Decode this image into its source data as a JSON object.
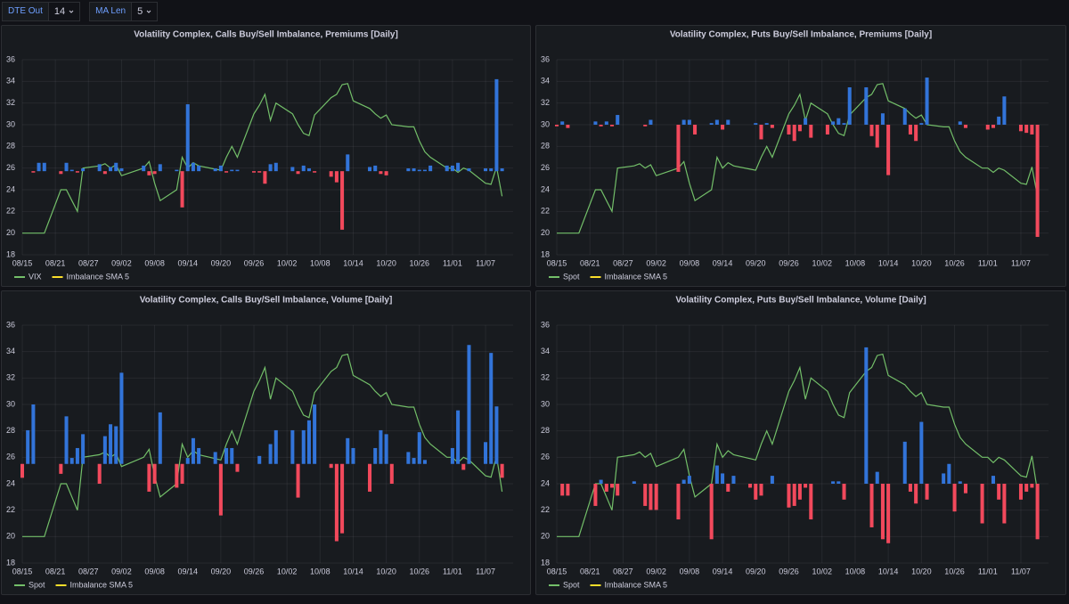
{
  "toolbar": {
    "variables": [
      {
        "label": "DTE Out",
        "value": "14"
      },
      {
        "label": "MA Len",
        "value": "5"
      }
    ]
  },
  "chart_data": [
    {
      "type": "combo",
      "title": "Volatility Complex, Calls Buy/Sell Imbalance, Premiums [Daily]",
      "x": [
        "08/15",
        "08/16",
        "08/17",
        "08/18",
        "08/19",
        "08/22",
        "08/23",
        "08/24",
        "08/25",
        "08/26",
        "08/29",
        "08/30",
        "08/31",
        "09/01",
        "09/02",
        "09/06",
        "09/07",
        "09/08",
        "09/09",
        "09/12",
        "09/13",
        "09/14",
        "09/15",
        "09/16",
        "09/19",
        "09/20",
        "09/21",
        "09/22",
        "09/23",
        "09/26",
        "09/27",
        "09/28",
        "09/29",
        "09/30",
        "10/03",
        "10/04",
        "10/05",
        "10/06",
        "10/07",
        "10/10",
        "10/11",
        "10/12",
        "10/13",
        "10/14",
        "10/17",
        "10/18",
        "10/19",
        "10/20",
        "10/21",
        "10/24",
        "10/25",
        "10/26",
        "10/27",
        "10/28",
        "10/31",
        "11/01",
        "11/02",
        "11/03",
        "11/04",
        "11/07",
        "11/08",
        "11/09",
        "11/10"
      ],
      "xlim": [
        "08/15",
        "11/12"
      ],
      "xticks": [
        "08/15",
        "08/21",
        "08/27",
        "09/02",
        "09/08",
        "09/14",
        "09/20",
        "09/26",
        "10/02",
        "10/08",
        "10/14",
        "10/20",
        "10/26",
        "11/01",
        "11/07"
      ],
      "ylim": [
        18,
        36
      ],
      "yticks": [
        18,
        20,
        22,
        24,
        26,
        28,
        30,
        32,
        34,
        36
      ],
      "y2lim": [
        -3,
        4
      ],
      "grid": true,
      "series": [
        {
          "name": "VIX",
          "color": "#73bf69",
          "values": [
            20,
            20,
            20,
            20,
            20,
            24,
            24,
            23,
            22,
            26,
            26.2,
            26.4,
            26,
            26.3,
            25.3,
            26,
            26.6,
            24.6,
            23,
            24,
            27,
            26,
            26.5,
            26.2,
            25.9,
            25.8,
            27,
            28,
            27,
            31,
            31.8,
            32.8,
            30.4,
            32,
            31,
            30,
            29.2,
            29,
            30.9,
            32.5,
            32.8,
            33.7,
            33.8,
            32.2,
            31.5,
            31,
            30.6,
            30.9,
            30,
            29.8,
            29.8,
            28.5,
            27.5,
            27,
            26,
            26,
            25.6,
            26,
            25.8,
            24.6,
            24.5,
            26.1,
            23.4
          ]
        },
        {
          "name": "Imbalance SMA 5",
          "color": "#fade2a"
        },
        {
          "type": "bar",
          "axis": "y2",
          "color": "#3274d9",
          "negative_color": "#f2495c",
          "values": [
            0,
            0,
            -0.05,
            0.3,
            0.3,
            -0.1,
            0.3,
            0.05,
            -0.05,
            0.1,
            0.25,
            -0.1,
            0.15,
            0.3,
            0.1,
            0.2,
            -0.15,
            -0.1,
            0.25,
            0.05,
            -1.3,
            2.4,
            0.3,
            0.2,
            0.1,
            0.2,
            -0.05,
            0.05,
            0.05,
            -0.05,
            -0.05,
            -0.45,
            0.25,
            0.3,
            0.15,
            -0.1,
            0.2,
            0.1,
            -0.05,
            -0.2,
            -0.4,
            -2.1,
            0.6,
            0,
            0.15,
            0.2,
            -0.1,
            -0.15,
            0,
            0.1,
            0.1,
            0.05,
            0.05,
            0.2,
            0.2,
            0.2,
            0.3,
            0,
            0.1,
            0.1,
            0.1,
            3.3,
            0.1
          ]
        }
      ]
    },
    {
      "type": "combo",
      "title": "Volatility Complex, Puts Buy/Sell Imbalance, Premiums [Daily]",
      "x": [
        "08/15",
        "08/16",
        "08/17",
        "08/18",
        "08/19",
        "08/22",
        "08/23",
        "08/24",
        "08/25",
        "08/26",
        "08/29",
        "08/30",
        "08/31",
        "09/01",
        "09/02",
        "09/06",
        "09/07",
        "09/08",
        "09/09",
        "09/12",
        "09/13",
        "09/14",
        "09/15",
        "09/16",
        "09/19",
        "09/20",
        "09/21",
        "09/22",
        "09/23",
        "09/26",
        "09/27",
        "09/28",
        "09/29",
        "09/30",
        "10/03",
        "10/04",
        "10/05",
        "10/06",
        "10/07",
        "10/10",
        "10/11",
        "10/12",
        "10/13",
        "10/14",
        "10/17",
        "10/18",
        "10/19",
        "10/20",
        "10/21",
        "10/24",
        "10/25",
        "10/26",
        "10/27",
        "10/28",
        "10/31",
        "11/01",
        "11/02",
        "11/03",
        "11/04",
        "11/07",
        "11/08",
        "11/09",
        "11/10"
      ],
      "xlim": [
        "08/15",
        "11/12"
      ],
      "xticks": [
        "08/15",
        "08/21",
        "08/27",
        "09/02",
        "09/08",
        "09/14",
        "09/20",
        "09/26",
        "10/02",
        "10/08",
        "10/14",
        "10/20",
        "10/26",
        "11/01",
        "11/07"
      ],
      "ylim": [
        18,
        36
      ],
      "yticks": [
        18,
        20,
        22,
        24,
        26,
        28,
        30,
        32,
        34,
        36
      ],
      "y2lim": [
        -4,
        2
      ],
      "grid": true,
      "series": [
        {
          "name": "Spot",
          "color": "#73bf69",
          "values": [
            20,
            20,
            20,
            20,
            20,
            24,
            24,
            23,
            22,
            26,
            26.2,
            26.4,
            26,
            26.3,
            25.3,
            26,
            26.6,
            24.6,
            23,
            24,
            27,
            26,
            26.5,
            26.2,
            25.9,
            25.8,
            27,
            28,
            27,
            31,
            31.8,
            32.8,
            30.4,
            32,
            31,
            30,
            29.2,
            29,
            30.9,
            32.5,
            32.8,
            33.7,
            33.8,
            32.2,
            31.5,
            31,
            30.6,
            30.9,
            30,
            29.8,
            29.8,
            28.5,
            27.5,
            27,
            26,
            26,
            25.6,
            26,
            25.8,
            24.6,
            24.5,
            26.1,
            23.4
          ]
        },
        {
          "name": "Imbalance SMA 5",
          "color": "#fade2a"
        },
        {
          "type": "bar",
          "axis": "y2",
          "color": "#3274d9",
          "negative_color": "#f2495c",
          "values": [
            -0.05,
            0.1,
            -0.1,
            0,
            0,
            0.1,
            -0.05,
            0.1,
            -0.05,
            0.3,
            0,
            0,
            -0.05,
            0.15,
            0,
            -1.45,
            0.15,
            0.15,
            -0.3,
            0.05,
            0.15,
            -0.15,
            0.15,
            0,
            0,
            0.05,
            -0.45,
            0.05,
            -0.1,
            -0.3,
            -0.5,
            -0.2,
            0.2,
            -0.4,
            -0.3,
            0.1,
            0.2,
            0.05,
            1.15,
            1.15,
            -0.35,
            -0.7,
            0.35,
            -1.55,
            0.5,
            -0.3,
            -0.5,
            0.05,
            1.45,
            0,
            0,
            0,
            0.1,
            -0.1,
            0,
            -0.15,
            -0.1,
            0.25,
            0.87,
            -0.2,
            -0.25,
            -0.3,
            -3.45
          ]
        }
      ]
    },
    {
      "type": "combo",
      "title": "Volatility Complex, Calls Buy/Sell Imbalance, Volume [Daily]",
      "x": [
        "08/15",
        "08/16",
        "08/17",
        "08/18",
        "08/19",
        "08/22",
        "08/23",
        "08/24",
        "08/25",
        "08/26",
        "08/29",
        "08/30",
        "08/31",
        "09/01",
        "09/02",
        "09/06",
        "09/07",
        "09/08",
        "09/09",
        "09/12",
        "09/13",
        "09/14",
        "09/15",
        "09/16",
        "09/19",
        "09/20",
        "09/21",
        "09/22",
        "09/23",
        "09/26",
        "09/27",
        "09/28",
        "09/29",
        "09/30",
        "10/03",
        "10/04",
        "10/05",
        "10/06",
        "10/07",
        "10/10",
        "10/11",
        "10/12",
        "10/13",
        "10/14",
        "10/17",
        "10/18",
        "10/19",
        "10/20",
        "10/21",
        "10/24",
        "10/25",
        "10/26",
        "10/27",
        "10/28",
        "10/31",
        "11/01",
        "11/02",
        "11/03",
        "11/04",
        "11/07",
        "11/08",
        "11/09",
        "11/10"
      ],
      "xlim": [
        "08/15",
        "11/12"
      ],
      "xticks": [
        "08/15",
        "08/21",
        "08/27",
        "09/02",
        "09/08",
        "09/14",
        "09/20",
        "09/26",
        "10/02",
        "10/08",
        "10/14",
        "10/20",
        "10/26",
        "11/01",
        "11/07"
      ],
      "ylim": [
        18,
        36
      ],
      "yticks": [
        18,
        20,
        22,
        24,
        26,
        28,
        30,
        32,
        34,
        36
      ],
      "y2lim": [
        -5,
        7
      ],
      "grid": true,
      "series": [
        {
          "name": "Spot",
          "color": "#73bf69",
          "values": [
            20,
            20,
            20,
            20,
            20,
            24,
            24,
            23,
            22,
            26,
            26.2,
            26.4,
            26,
            26.3,
            25.3,
            26,
            26.6,
            24.6,
            23,
            24,
            27,
            26,
            26.5,
            26.2,
            25.9,
            25.8,
            27,
            28,
            27,
            31,
            31.8,
            32.8,
            30.4,
            32,
            31,
            30,
            29.2,
            29,
            30.9,
            32.5,
            32.8,
            33.7,
            33.8,
            32.2,
            31.5,
            31,
            30.6,
            30.9,
            30,
            29.8,
            29.8,
            28.5,
            27.5,
            27,
            26,
            26,
            25.6,
            26,
            25.8,
            24.6,
            24.5,
            26.1,
            23.4
          ]
        },
        {
          "name": "Imbalance SMA 5",
          "color": "#fade2a"
        },
        {
          "type": "bar",
          "axis": "y2",
          "color": "#3274d9",
          "negative_color": "#f2495c",
          "values": [
            -0.7,
            1.7,
            3,
            0,
            0,
            -0.5,
            2.4,
            0.3,
            0.8,
            1.5,
            -1,
            1.4,
            2,
            1.9,
            4.6,
            0,
            -1.4,
            -1,
            2.6,
            -1.2,
            -1,
            0.3,
            1.3,
            0.8,
            0.6,
            -2.6,
            0.8,
            0.8,
            -0.4,
            0,
            0.4,
            0,
            1,
            1.7,
            1.7,
            -1.7,
            1.7,
            2.2,
            3,
            -0.2,
            -3.9,
            -3.5,
            1.3,
            0.8,
            -1.4,
            0.8,
            1.7,
            1.5,
            -1,
            0.6,
            0.3,
            1.6,
            0.2,
            0,
            0,
            0.8,
            2.7,
            -0.3,
            6,
            1.1,
            5.6,
            2.9,
            -0.7
          ]
        }
      ]
    },
    {
      "type": "combo",
      "title": "Volatility Complex, Puts Buy/Sell Imbalance, Volume [Daily]",
      "x": [
        "08/15",
        "08/16",
        "08/17",
        "08/18",
        "08/19",
        "08/22",
        "08/23",
        "08/24",
        "08/25",
        "08/26",
        "08/29",
        "08/30",
        "08/31",
        "09/01",
        "09/02",
        "09/06",
        "09/07",
        "09/08",
        "09/09",
        "09/12",
        "09/13",
        "09/14",
        "09/15",
        "09/16",
        "09/19",
        "09/20",
        "09/21",
        "09/22",
        "09/23",
        "09/26",
        "09/27",
        "09/28",
        "09/29",
        "09/30",
        "10/03",
        "10/04",
        "10/05",
        "10/06",
        "10/07",
        "10/10",
        "10/11",
        "10/12",
        "10/13",
        "10/14",
        "10/17",
        "10/18",
        "10/19",
        "10/20",
        "10/21",
        "10/24",
        "10/25",
        "10/26",
        "10/27",
        "10/28",
        "10/31",
        "11/01",
        "11/02",
        "11/03",
        "11/04",
        "11/07",
        "11/08",
        "11/09",
        "11/10"
      ],
      "xlim": [
        "08/15",
        "11/12"
      ],
      "xticks": [
        "08/15",
        "08/21",
        "08/27",
        "09/02",
        "09/08",
        "09/14",
        "09/20",
        "09/26",
        "10/02",
        "10/08",
        "10/14",
        "10/20",
        "10/26",
        "11/01",
        "11/07"
      ],
      "ylim": [
        18,
        36
      ],
      "yticks": [
        18,
        20,
        22,
        24,
        26,
        28,
        30,
        32,
        34,
        36
      ],
      "y2lim": [
        -1,
        2
      ],
      "grid": true,
      "series": [
        {
          "name": "Spot",
          "color": "#73bf69",
          "values": [
            20,
            20,
            20,
            20,
            20,
            24,
            24,
            23,
            22,
            26,
            26.2,
            26.4,
            26,
            26.3,
            25.3,
            26,
            26.6,
            24.6,
            23,
            24,
            27,
            26,
            26.5,
            26.2,
            25.9,
            25.8,
            27,
            28,
            27,
            31,
            31.8,
            32.8,
            30.4,
            32,
            31,
            30,
            29.2,
            29,
            30.9,
            32.5,
            32.8,
            33.7,
            33.8,
            32.2,
            31.5,
            31,
            30.6,
            30.9,
            30,
            29.8,
            29.8,
            28.5,
            27.5,
            27,
            26,
            26,
            25.6,
            26,
            25.8,
            24.6,
            24.5,
            26.1,
            23.4
          ]
        },
        {
          "name": "Imbalance SMA 5",
          "color": "#fade2a"
        },
        {
          "type": "bar",
          "axis": "y2",
          "color": "#3274d9",
          "negative_color": "#f2495c",
          "values": [
            0,
            -0.15,
            -0.15,
            0,
            0,
            -0.28,
            0.05,
            -0.1,
            -0.05,
            -0.15,
            0.03,
            0,
            -0.28,
            -0.33,
            -0.33,
            -0.45,
            0.05,
            0.1,
            0,
            -0.7,
            0.23,
            0.13,
            -0.1,
            0.1,
            -0.05,
            -0.2,
            -0.15,
            0,
            0.1,
            -0.3,
            -0.28,
            -0.2,
            -0.05,
            -0.45,
            0,
            0.03,
            0.03,
            -0.2,
            0,
            1.72,
            -0.55,
            0.15,
            -0.7,
            -0.75,
            0.53,
            -0.1,
            -0.25,
            0.78,
            -0.2,
            0.13,
            0.25,
            -0.35,
            0.03,
            -0.12,
            -0.5,
            0,
            0.1,
            -0.2,
            -0.5,
            -0.2,
            -0.1,
            -0.05,
            -0.7
          ]
        }
      ]
    }
  ]
}
